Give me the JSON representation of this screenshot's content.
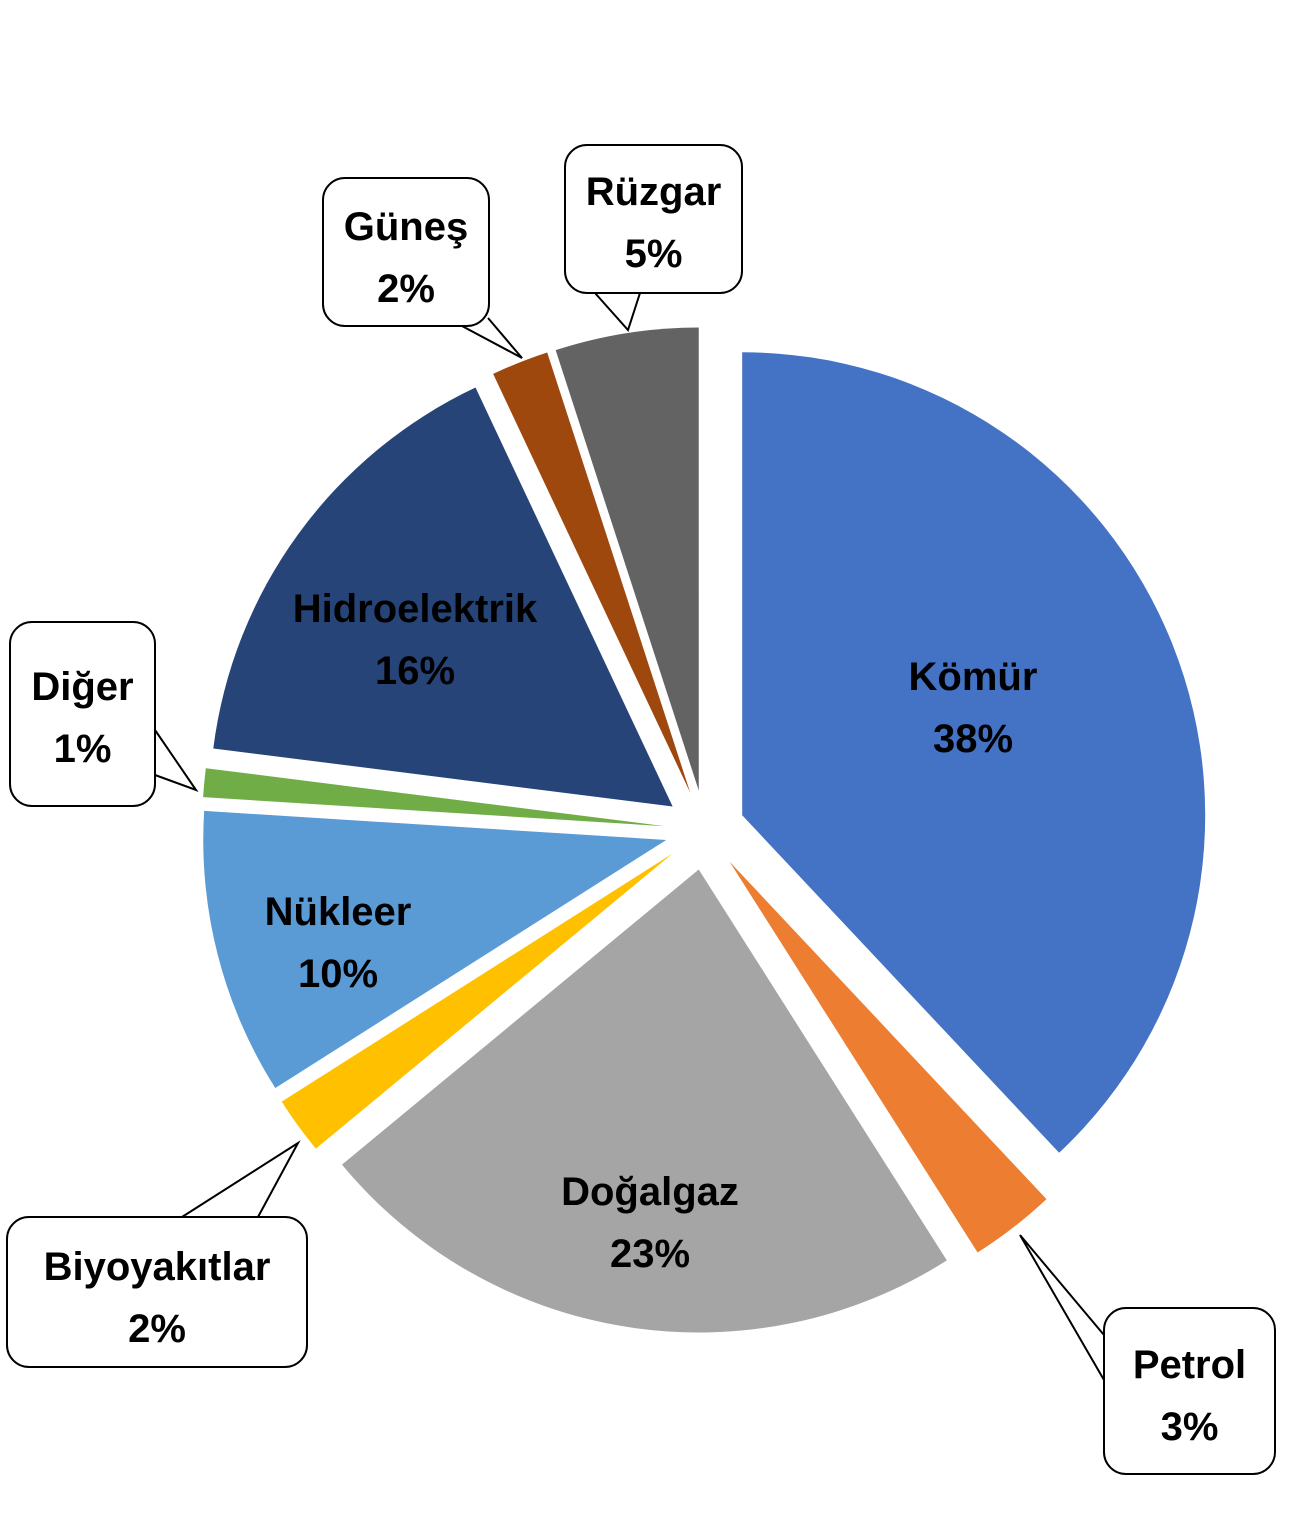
{
  "chart_data": {
    "type": "pie",
    "exploded": true,
    "start_angle": "12 o'clock, clockwise",
    "slices": [
      {
        "label": "Kömür",
        "value": 38,
        "display": "38%",
        "color": "#4472C4",
        "label_style": "inside"
      },
      {
        "label": "Petrol",
        "value": 3,
        "display": "3%",
        "color": "#ED7D31",
        "label_style": "callout"
      },
      {
        "label": "Doğalgaz",
        "value": 23,
        "display": "23%",
        "color": "#A5A5A5",
        "label_style": "inside"
      },
      {
        "label": "Biyoyakıtlar",
        "value": 2,
        "display": "2%",
        "color": "#FFC000",
        "label_style": "callout"
      },
      {
        "label": "Nükleer",
        "value": 10,
        "display": "10%",
        "color": "#5B9BD5",
        "label_style": "inside"
      },
      {
        "label": "Diğer",
        "value": 1,
        "display": "1%",
        "color": "#70AD47",
        "label_style": "callout"
      },
      {
        "label": "Hidroelektrik",
        "value": 16,
        "display": "16%",
        "color": "#264478",
        "label_style": "inside"
      },
      {
        "label": "Güneş",
        "value": 2,
        "display": "2%",
        "color": "#9E480E",
        "label_style": "callout"
      },
      {
        "label": "Rüzgar",
        "value": 5,
        "display": "5%",
        "color": "#636363",
        "label_style": "callout"
      }
    ]
  }
}
